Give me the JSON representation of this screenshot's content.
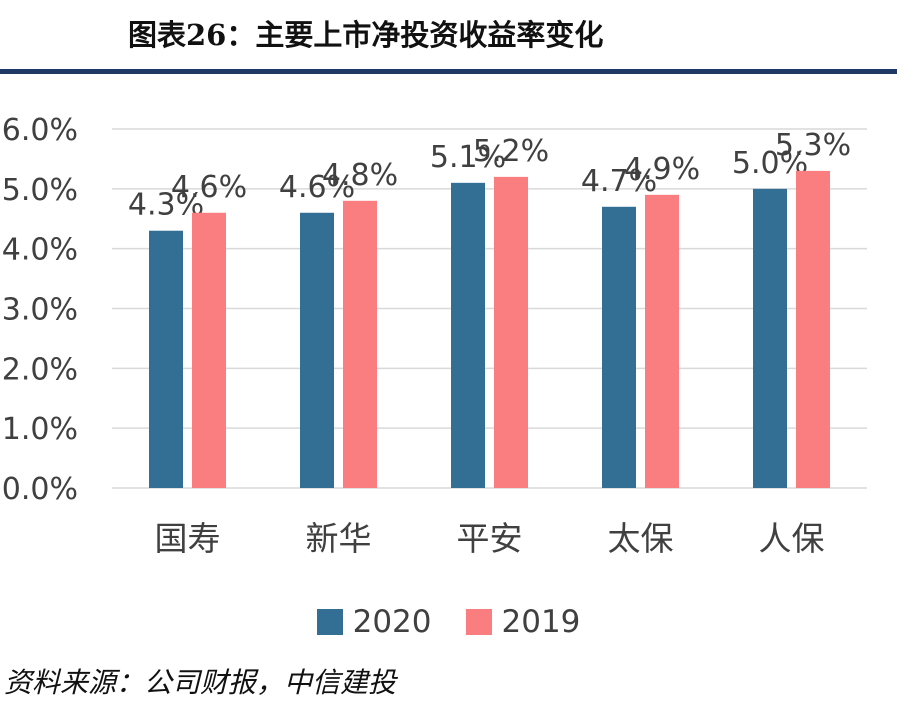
{
  "title": "图表26：主要上市净投资收益率变化",
  "source": "资料来源：公司财报，中信建投",
  "colors": {
    "series_2020": "#336f94",
    "series_2019": "#fa7e7f",
    "grid": "#d9d9d9",
    "text": "#404040",
    "rule": "#1f3864"
  },
  "chart_data": {
    "type": "bar",
    "categories": [
      "国寿",
      "新华",
      "平安",
      "太保",
      "人保"
    ],
    "series": [
      {
        "name": "2020",
        "values": [
          4.3,
          4.6,
          5.1,
          4.7,
          5.0
        ],
        "labels": [
          "4.3%",
          "4.6%",
          "5.1%",
          "4.7%",
          "5.0%"
        ]
      },
      {
        "name": "2019",
        "values": [
          4.6,
          4.8,
          5.2,
          4.9,
          5.3
        ],
        "labels": [
          "4.6%",
          "4.8%",
          "5.2%",
          "4.9%",
          "5.3%"
        ]
      }
    ],
    "ylim": [
      0,
      6
    ],
    "yticks": [
      "0.0%",
      "1.0%",
      "2.0%",
      "3.0%",
      "4.0%",
      "5.0%",
      "6.0%"
    ],
    "grid": true,
    "legend": "bottom"
  }
}
